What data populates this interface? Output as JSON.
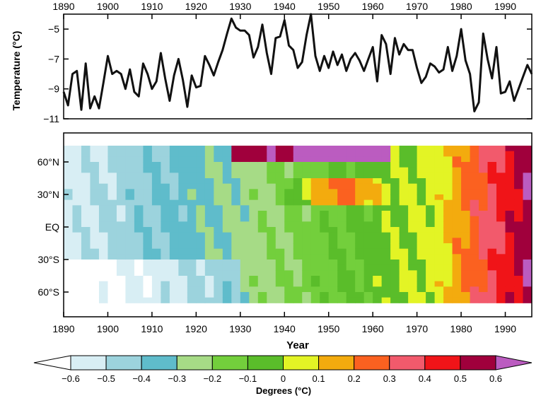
{
  "chart_data": [
    {
      "type": "line",
      "title": "",
      "xlabel": "",
      "ylabel": "Temperature (°C)",
      "xlim": [
        1890,
        1996
      ],
      "ylim": [
        -11,
        -4
      ],
      "x_ticks": [
        "1890",
        "1900",
        "1910",
        "1920",
        "1930",
        "1940",
        "1950",
        "1960",
        "1970",
        "1980",
        "1990"
      ],
      "y_ticks": [
        "−5",
        "−7",
        "−9",
        "−11"
      ],
      "y_tick_values": [
        -5,
        -7,
        -9,
        -11
      ],
      "x_tick_values": [
        1890,
        1900,
        1910,
        1920,
        1930,
        1940,
        1950,
        1960,
        1970,
        1980,
        1990
      ],
      "series": [
        {
          "x": [
            1890,
            1891,
            1892,
            1893,
            1894,
            1895,
            1896,
            1897,
            1898,
            1899,
            1900,
            1901,
            1902,
            1903,
            1904,
            1905,
            1906,
            1907,
            1908,
            1909,
            1910,
            1911,
            1912,
            1913,
            1914,
            1915,
            1916,
            1917,
            1918,
            1919,
            1920,
            1921,
            1922,
            1923,
            1924,
            1925,
            1926,
            1927,
            1928,
            1929,
            1930,
            1931,
            1932,
            1933,
            1934,
            1935,
            1936,
            1937,
            1938,
            1939,
            1940,
            1941,
            1942,
            1943,
            1944,
            1945,
            1946,
            1947,
            1948,
            1949,
            1950,
            1951,
            1952,
            1953,
            1954,
            1955,
            1956,
            1957,
            1958,
            1959,
            1960,
            1961,
            1962,
            1963,
            1964,
            1965,
            1966,
            1967,
            1968,
            1969,
            1970,
            1971,
            1972,
            1973,
            1974,
            1975,
            1976,
            1977,
            1978,
            1979,
            1980,
            1981,
            1982,
            1983,
            1984,
            1985,
            1986,
            1987,
            1988,
            1989,
            1990,
            1991,
            1992,
            1993,
            1994,
            1995,
            1996
          ],
          "values": [
            -9.2,
            -10.1,
            -8.0,
            -7.8,
            -10.4,
            -7.3,
            -10.3,
            -9.5,
            -10.3,
            -8.6,
            -6.8,
            -8.0,
            -7.8,
            -8.0,
            -9.0,
            -7.7,
            -9.2,
            -9.5,
            -7.3,
            -8.0,
            -9.0,
            -8.5,
            -6.6,
            -8.3,
            -9.8,
            -8.1,
            -7.0,
            -8.4,
            -10.2,
            -8.1,
            -8.9,
            -8.8,
            -6.8,
            -7.4,
            -8.1,
            -7.2,
            -6.4,
            -5.3,
            -4.3,
            -4.9,
            -5.1,
            -5.1,
            -5.4,
            -6.9,
            -6.2,
            -4.7,
            -6.6,
            -8.0,
            -5.6,
            -5.5,
            -4.4,
            -6.1,
            -6.4,
            -7.6,
            -7.2,
            -5.4,
            -4.0,
            -6.8,
            -7.8,
            -6.8,
            -7.6,
            -6.5,
            -7.4,
            -6.7,
            -7.8,
            -7.0,
            -6.6,
            -7.1,
            -7.8,
            -7.0,
            -6.2,
            -8.5,
            -5.4,
            -6.0,
            -8.0,
            -5.6,
            -6.7,
            -6.0,
            -6.4,
            -6.4,
            -7.6,
            -8.6,
            -8.2,
            -7.3,
            -7.5,
            -7.9,
            -7.7,
            -6.2,
            -7.8,
            -6.8,
            -5.0,
            -7.1,
            -8.0,
            -10.5,
            -9.9,
            -5.3,
            -7.0,
            -8.3,
            -6.2,
            -9.3,
            -9.2,
            -8.5,
            -9.8,
            -9.0,
            -8.2,
            -7.4,
            -8.0
          ]
        }
      ]
    },
    {
      "type": "heatmap",
      "xlabel": "Year",
      "ylabel": "",
      "xlim": [
        1890,
        1996
      ],
      "ylim": [
        -90,
        90
      ],
      "x_ticks": [
        "1890",
        "1900",
        "1910",
        "1920",
        "1930",
        "1940",
        "1950",
        "1960",
        "1970",
        "1980",
        "1990"
      ],
      "x_tick_values": [
        1890,
        1900,
        1910,
        1920,
        1930,
        1940,
        1950,
        1960,
        1970,
        1980,
        1990
      ],
      "y_ticks": [
        "60°N",
        "30°N",
        "EQ",
        "30°S",
        "60°S"
      ],
      "y_tick_values": [
        60,
        30,
        0,
        -30,
        -60
      ],
      "colorbar": {
        "label": "Degrees (°C)",
        "ticks": [
          "−0.6",
          "−0.5",
          "−0.4",
          "−0.3",
          "−0.2",
          "−0.1",
          "0",
          "0.1",
          "0.2",
          "0.3",
          "0.4",
          "0.5",
          "0.6"
        ],
        "colors": [
          "#ffffff",
          "#d8eef4",
          "#9cd3dd",
          "#5fbccb",
          "#a6db86",
          "#73cf3c",
          "#5abd2a",
          "#e3f425",
          "#f3ab0e",
          "#fb6120",
          "#f25a6c",
          "#f01418",
          "#a0003c",
          "#bb5cc0"
        ]
      }
    }
  ]
}
